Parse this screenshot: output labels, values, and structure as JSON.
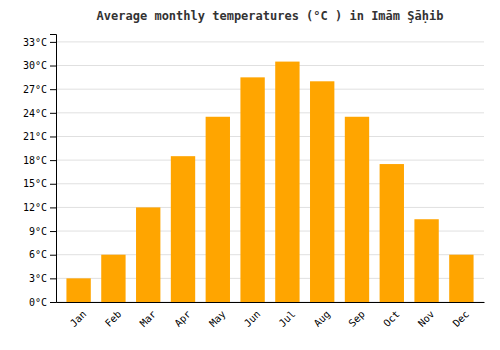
{
  "chart_data": {
    "type": "bar",
    "title": "Average monthly temperatures (°C ) in Imām Şāḥib",
    "categories": [
      "Jan",
      "Feb",
      "Mar",
      "Apr",
      "May",
      "Jun",
      "Jul",
      "Aug",
      "Sep",
      "Oct",
      "Nov",
      "Dec"
    ],
    "values": [
      3,
      6,
      12,
      18.5,
      23.5,
      28.5,
      30.5,
      28,
      23.5,
      17.5,
      10.5,
      6
    ],
    "color": "#FFA500",
    "ylim": [
      0,
      34
    ],
    "yticks": [
      {
        "value": 0,
        "label": "0°C"
      },
      {
        "value": 3,
        "label": "3°C"
      },
      {
        "value": 6,
        "label": "6°C"
      },
      {
        "value": 9,
        "label": "9°C"
      },
      {
        "value": 12,
        "label": "12°C"
      },
      {
        "value": 15,
        "label": "15°C"
      },
      {
        "value": 18,
        "label": "18°C"
      },
      {
        "value": 21,
        "label": "21°C"
      },
      {
        "value": 24,
        "label": "24°C"
      },
      {
        "value": 27,
        "label": "27°C"
      },
      {
        "value": 30,
        "label": "30°C"
      },
      {
        "value": 33,
        "label": "33°C"
      }
    ],
    "grid": true
  }
}
